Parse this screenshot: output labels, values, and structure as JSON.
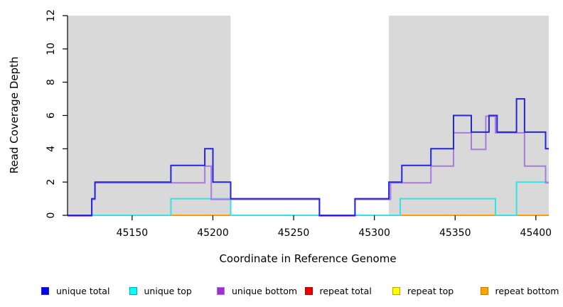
{
  "figure": {
    "x_axis_label": "Coordinate in Reference Genome",
    "y_axis_label": "Read Coverage Depth",
    "background_color": "#ffffff",
    "shaded_band_color": "#d9d9d9"
  },
  "legend": [
    {
      "label": "unique total",
      "fill": "#0000ee",
      "edge": "#2222cc"
    },
    {
      "label": "unique top",
      "fill": "#00ffff",
      "edge": "#00a8b0"
    },
    {
      "label": "unique bottom",
      "fill": "#9a32cd",
      "edge": "#c060e8"
    },
    {
      "label": "repeat total",
      "fill": "#ee0000",
      "edge": "#aa0000"
    },
    {
      "label": "repeat top",
      "fill": "#ffff00",
      "edge": "#c8a000"
    },
    {
      "label": "repeat bottom",
      "fill": "#ffa500",
      "edge": "#cc7a00"
    }
  ],
  "chart_data": {
    "type": "line",
    "step": true,
    "title": "",
    "xlabel": "Coordinate in Reference Genome",
    "ylabel": "Read Coverage Depth",
    "xlim": [
      45110,
      45408
    ],
    "ylim": [
      0,
      12
    ],
    "xticks": [
      45150,
      45200,
      45250,
      45300,
      45350,
      45400
    ],
    "yticks": [
      0,
      2,
      4,
      6,
      8,
      10,
      12
    ],
    "grid": false,
    "legend_position": "bottom",
    "background_bands": [
      {
        "from": 45110,
        "to": 45211,
        "color": "#d9d9d9"
      },
      {
        "from": 45309,
        "to": 45408,
        "color": "#d9d9d9"
      }
    ],
    "zero_line_blend": {
      "color": "#82c982",
      "from": 45110,
      "to": 45408
    },
    "series": [
      {
        "name": "repeat total",
        "color": "#ee0000",
        "points": [
          [
            45110,
            0
          ]
        ]
      },
      {
        "name": "repeat top",
        "color": "#ffff00",
        "points": [
          [
            45110,
            0
          ]
        ]
      },
      {
        "name": "repeat bottom",
        "color": "#ff9d00",
        "points": [
          [
            45110,
            0
          ]
        ],
        "visible_segments": [
          [
            45174,
            45211
          ],
          [
            45316,
            45375
          ],
          [
            45388,
            45408
          ]
        ]
      },
      {
        "name": "unique top",
        "color": "#35e2e6",
        "points": [
          [
            45110,
            0
          ],
          [
            45174,
            1
          ],
          [
            45211,
            0
          ],
          [
            45316,
            1
          ],
          [
            45375,
            0
          ],
          [
            45388,
            2
          ]
        ]
      },
      {
        "name": "unique bottom",
        "color": "#a97be0",
        "points": [
          [
            45110,
            0
          ],
          [
            45125,
            1
          ],
          [
            45127,
            2
          ],
          [
            45195,
            3
          ],
          [
            45199,
            1
          ],
          [
            45266,
            0
          ],
          [
            45288,
            1
          ],
          [
            45310,
            2
          ],
          [
            45335,
            3
          ],
          [
            45349,
            5
          ],
          [
            45360,
            4
          ],
          [
            45369,
            6
          ],
          [
            45375,
            5
          ],
          [
            45393,
            3
          ],
          [
            45406,
            2
          ]
        ]
      },
      {
        "name": "unique total",
        "color": "#2525dc",
        "points": [
          [
            45110,
            0
          ],
          [
            45125,
            1
          ],
          [
            45127,
            2
          ],
          [
            45174,
            3
          ],
          [
            45195,
            4
          ],
          [
            45200,
            2
          ],
          [
            45211,
            1
          ],
          [
            45266,
            0
          ],
          [
            45288,
            1
          ],
          [
            45309,
            2
          ],
          [
            45317,
            3
          ],
          [
            45335,
            4
          ],
          [
            45349,
            6
          ],
          [
            45360,
            5
          ],
          [
            45371,
            6
          ],
          [
            45376,
            5
          ],
          [
            45388,
            7
          ],
          [
            45393,
            5
          ],
          [
            45406,
            4
          ]
        ]
      }
    ]
  }
}
